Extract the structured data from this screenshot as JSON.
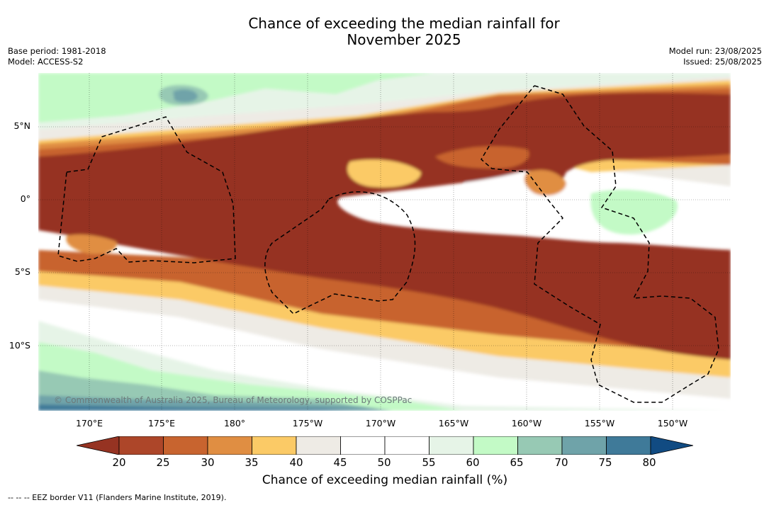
{
  "header": {
    "title_line1": "Chance of exceeding the median rainfall for",
    "title_line2": "November 2025",
    "base_period": "Base period: 1981-2018",
    "model": "Model: ACCESS-S2",
    "model_run": "Model run: 23/08/2025",
    "issued": "Issued: 25/08/2025"
  },
  "map": {
    "copyright": "© Commonwealth of Australia 2025, Bureau of Meteorology, supported by COSPPac",
    "lat_labels": [
      "5°N",
      "0°",
      "5°S",
      "10°S"
    ],
    "lon_labels": [
      "170°E",
      "175°E",
      "180°",
      "175°W",
      "170°W",
      "165°W",
      "160°W",
      "155°W",
      "150°W"
    ],
    "lat_values": [
      5,
      0,
      -5,
      -10
    ],
    "lon_values": [
      170,
      175,
      180,
      185,
      190,
      195,
      200,
      205,
      210
    ],
    "lat_range": [
      -14.3,
      8.7
    ],
    "lon_range": [
      166.6,
      214.3
    ],
    "grid": true,
    "dominant_band": "below median (20%) along equatorial belt ~2°N to 10°S"
  },
  "colorbar": {
    "label": "Chance of exceeding median rainfall (%)",
    "ticks": [
      "20",
      "25",
      "30",
      "35",
      "40",
      "45",
      "50",
      "55",
      "60",
      "65",
      "70",
      "75",
      "80"
    ],
    "colors": [
      "#963322",
      "#ad4629",
      "#c8642f",
      "#e08e42",
      "#fbca66",
      "#eeebe5",
      "#ffffff",
      "#ffffff",
      "#e6f4e7",
      "#c3fac6",
      "#97c9b4",
      "#6fa3a9",
      "#3f7a99",
      "#114b82"
    ],
    "extend": "both"
  },
  "footer": {
    "legend_text": "--  --  -- EEZ border V11 (Flanders Marine Institute, 2019)."
  }
}
